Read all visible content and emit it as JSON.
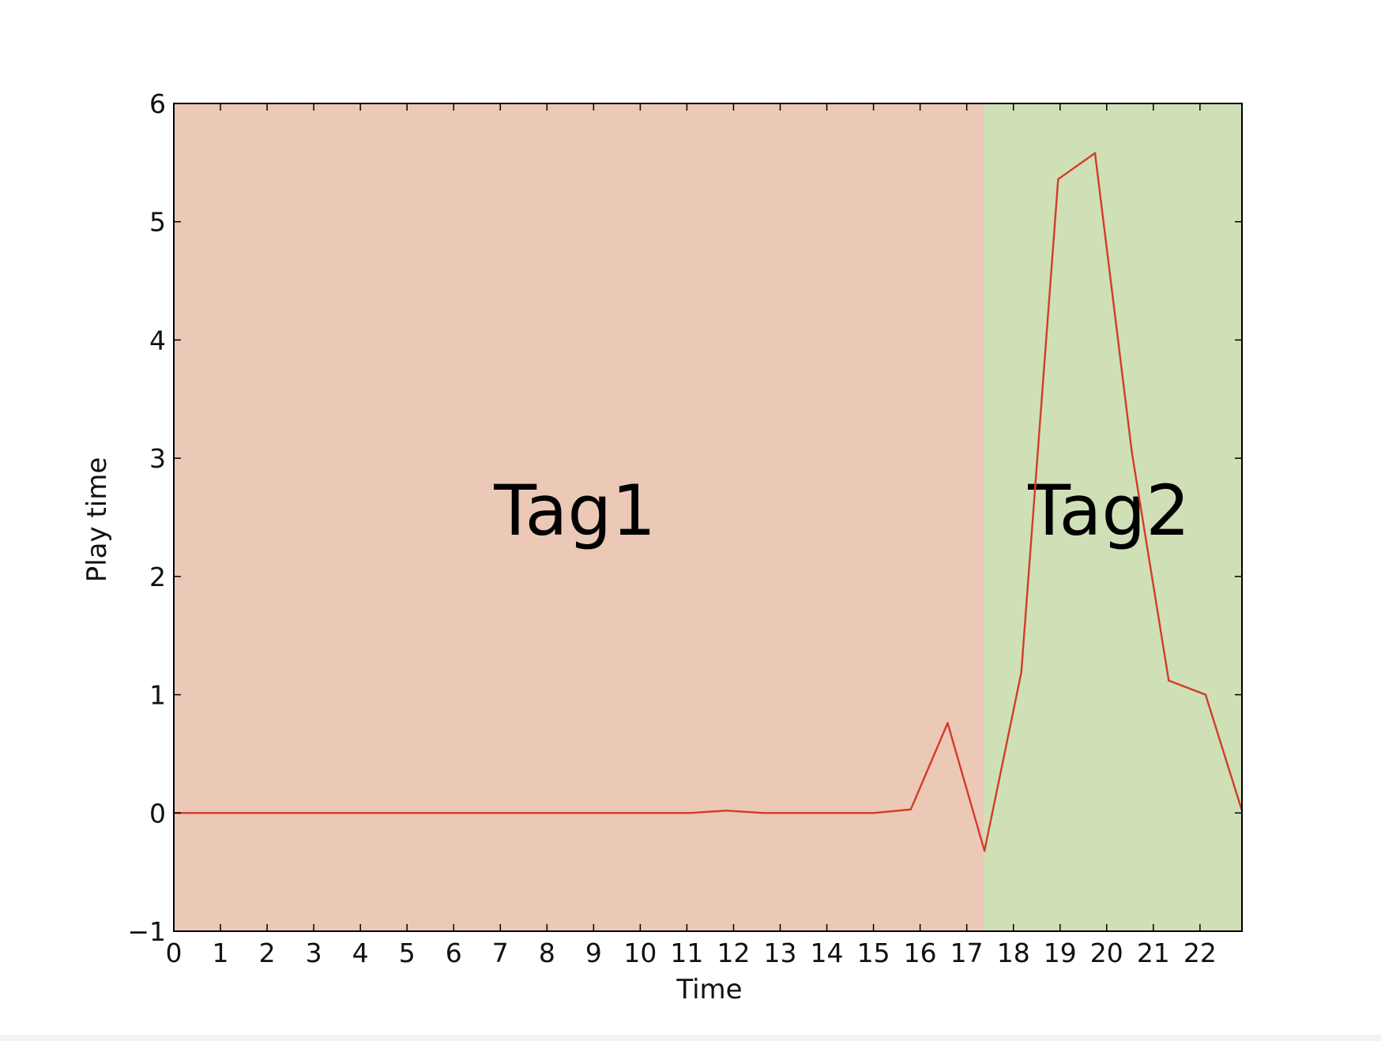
{
  "chart_data": {
    "type": "line",
    "title": "",
    "xlabel": "Time",
    "ylabel": "Play time",
    "xlim": [
      0,
      22.9
    ],
    "ylim": [
      -1,
      6
    ],
    "xticks": [
      0,
      1,
      2,
      3,
      4,
      5,
      6,
      7,
      8,
      9,
      10,
      11,
      12,
      13,
      14,
      15,
      16,
      17,
      18,
      19,
      20,
      21,
      22
    ],
    "xtick_labels": [
      "0",
      "1",
      "2",
      "3",
      "4",
      "5",
      "6",
      "7",
      "8",
      "9",
      "10",
      "11",
      "12",
      "13",
      "14",
      "15",
      "16",
      "17",
      "18",
      "19",
      "20",
      "21",
      "22"
    ],
    "yticks": [
      -1,
      0,
      1,
      2,
      3,
      4,
      5,
      6
    ],
    "ytick_labels": [
      "−1",
      "0",
      "1",
      "2",
      "3",
      "4",
      "5",
      "6"
    ],
    "grid": false,
    "regions": [
      {
        "label": "Tag1",
        "x_start": 0,
        "x_end": 17.37,
        "color": "#ebc9b6"
      },
      {
        "label": "Tag2",
        "x_start": 17.37,
        "x_end": 22.9,
        "color": "#cfe0b6"
      }
    ],
    "series": [
      {
        "color": "#d23c28",
        "x": [
          0,
          0.79,
          1.58,
          2.37,
          3.16,
          3.95,
          4.74,
          5.53,
          6.32,
          7.11,
          7.9,
          8.69,
          9.48,
          10.27,
          11.06,
          11.85,
          12.64,
          13.43,
          14.22,
          15.01,
          15.8,
          16.59,
          17.38,
          18.17,
          18.96,
          19.75,
          20.54,
          21.33,
          22.12,
          22.9
        ],
        "y": [
          0,
          0,
          0,
          0,
          0,
          0,
          0,
          0,
          0,
          0,
          0,
          0,
          0,
          0,
          0,
          0.02,
          0,
          0,
          0,
          0,
          0.03,
          0.76,
          -0.32,
          1.19,
          5.36,
          5.58,
          3.05,
          1.12,
          1.0,
          0.02
        ]
      }
    ]
  }
}
